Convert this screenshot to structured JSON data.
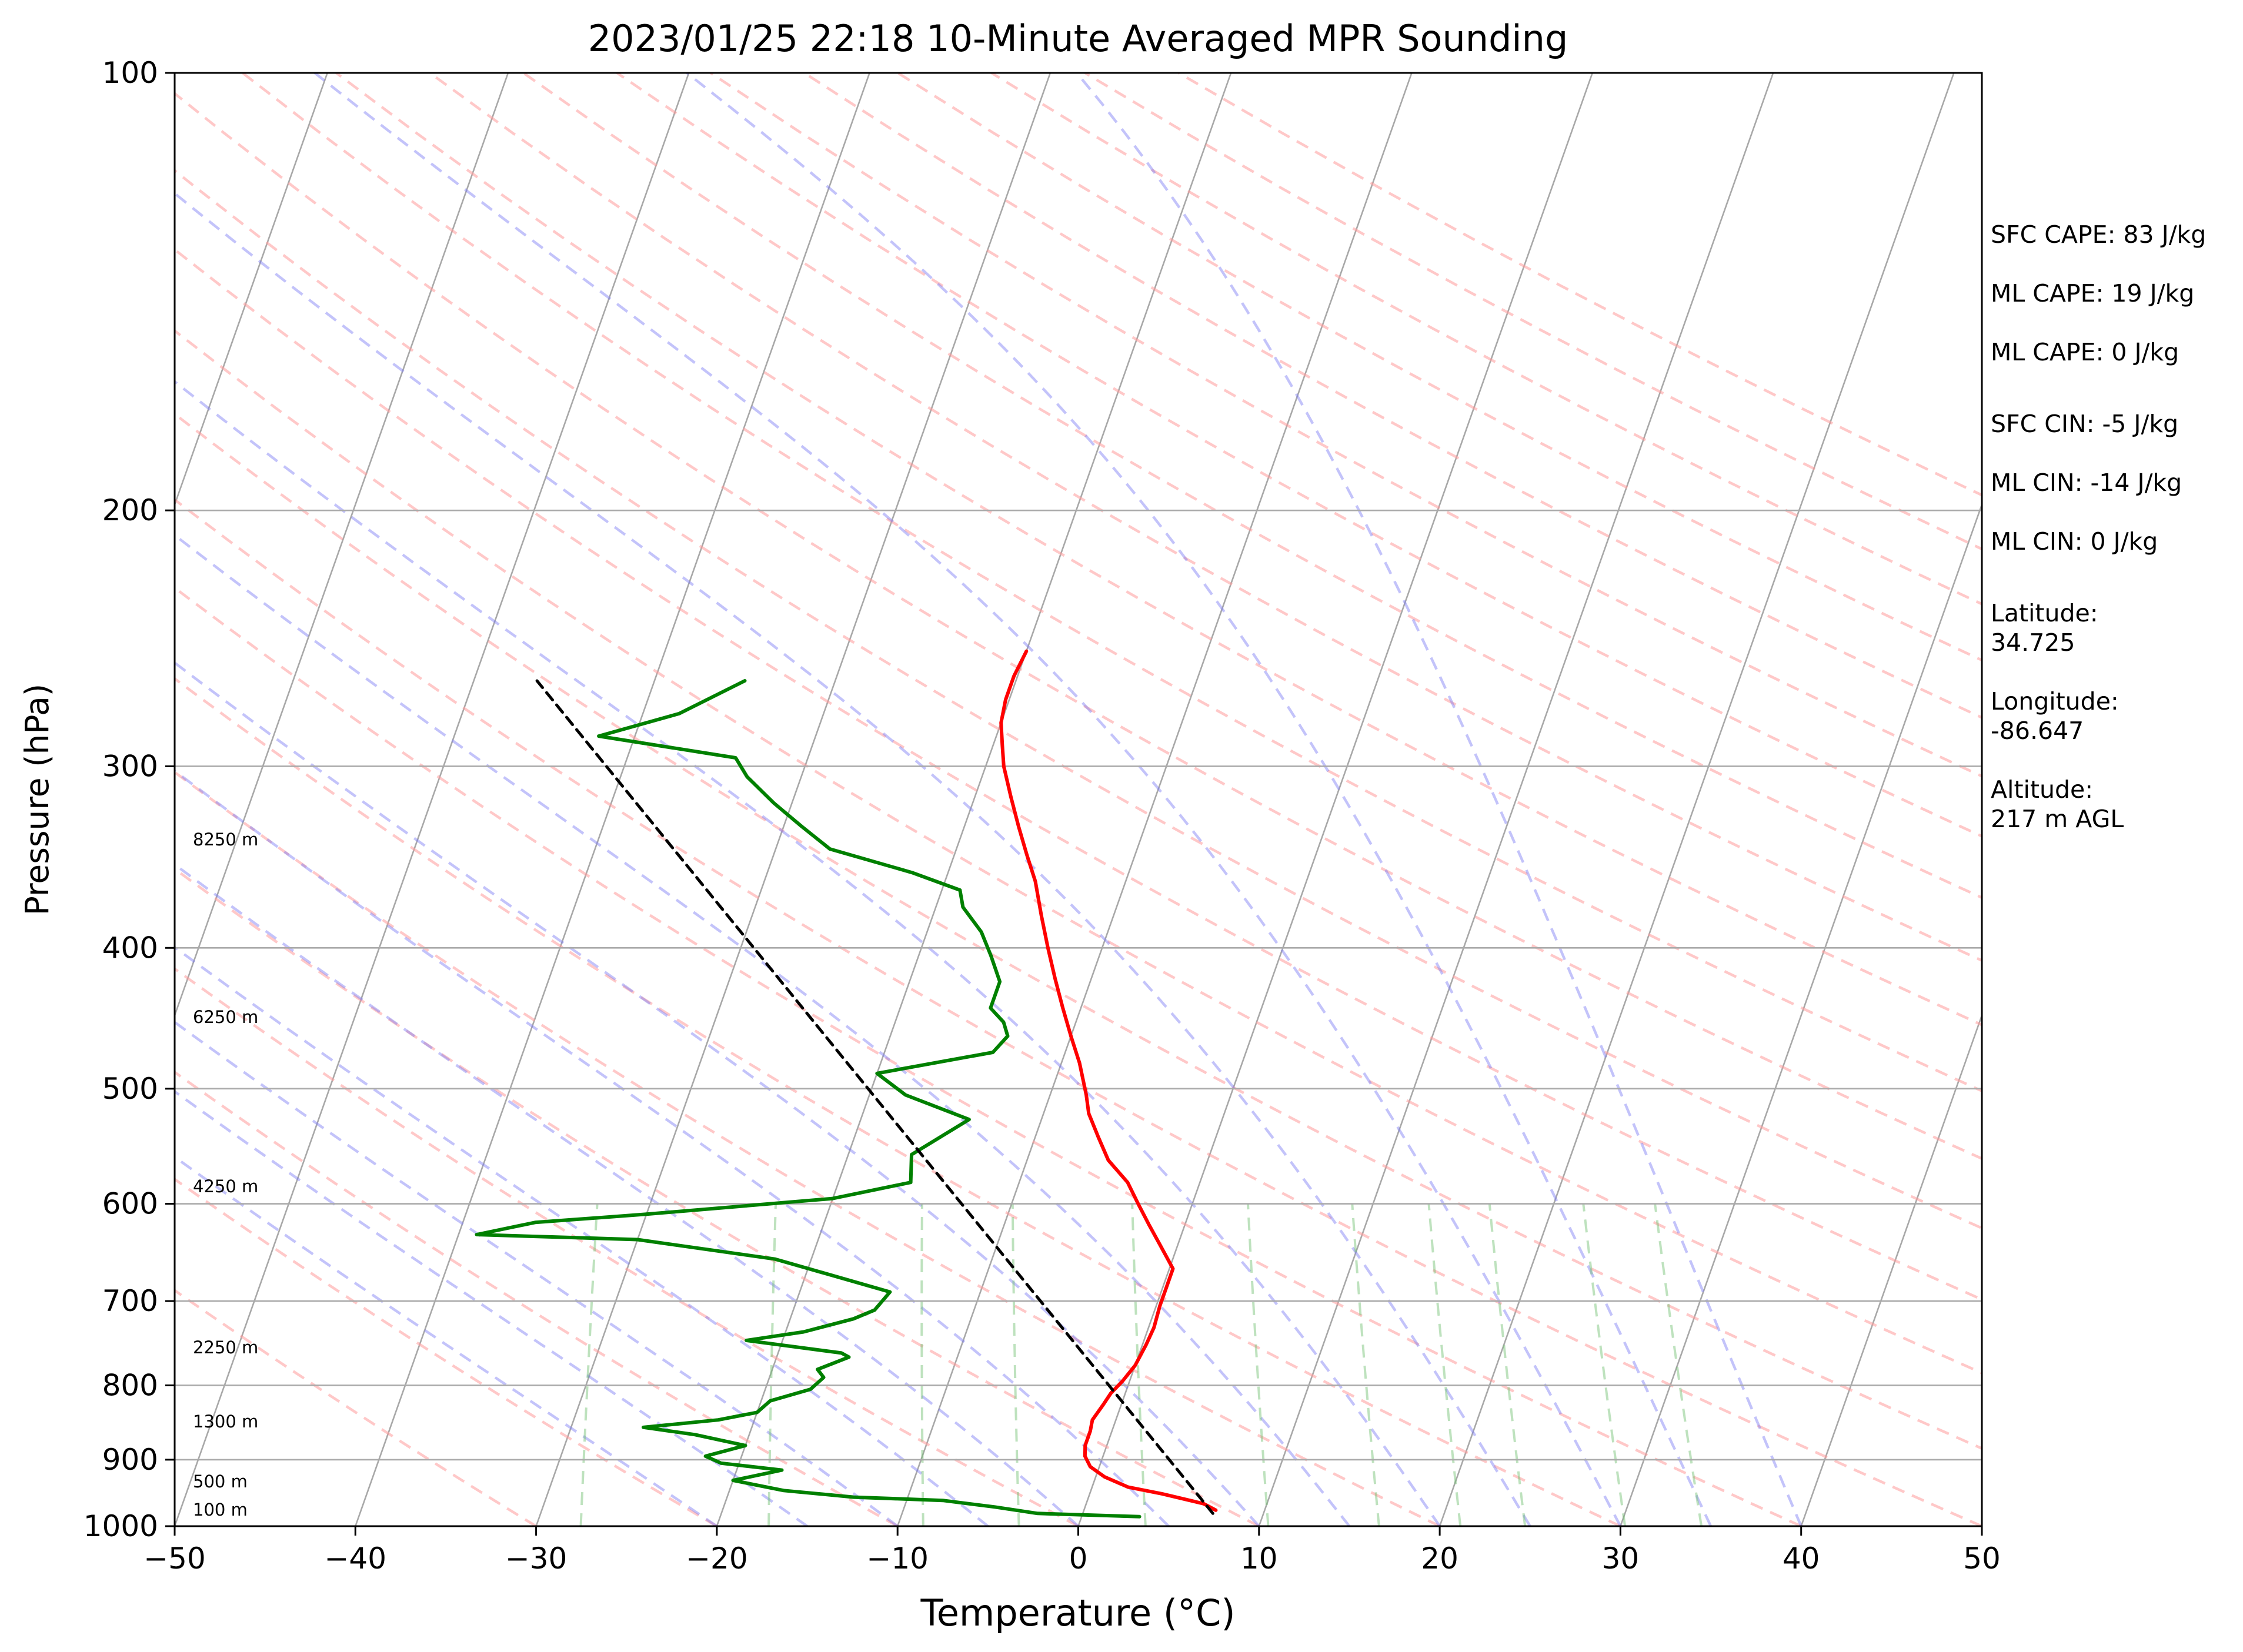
{
  "chart_data": {
    "type": "line",
    "title": "2023/01/25 22:18 10-Minute Averaged MPR Sounding",
    "xlabel": "Temperature (°C)",
    "ylabel": "Pressure (hPa)",
    "xlim": [
      -50,
      50
    ],
    "ylim": [
      1000,
      100
    ],
    "y_scale": "log",
    "x_ticks": [
      "−50",
      "−40",
      "−30",
      "−20",
      "−10",
      "0",
      "10",
      "20",
      "30",
      "40",
      "50"
    ],
    "y_ticks": [
      "100",
      "200",
      "300",
      "400",
      "500",
      "600",
      "700",
      "800",
      "900",
      "1000"
    ],
    "grid": true,
    "height_labels": [
      "100 m",
      "500 m",
      "1300 m",
      "2250 m",
      "4250 m",
      "6250 m",
      "8250 m"
    ],
    "series": [
      {
        "color": "#ff0000",
        "points": [
          [
            7.3,
            975
          ],
          [
            6.5,
            965
          ],
          [
            4,
            950
          ],
          [
            2,
            940
          ],
          [
            0.5,
            925
          ],
          [
            -0.5,
            910
          ],
          [
            -1,
            895
          ],
          [
            -1.2,
            880
          ],
          [
            -1.2,
            860
          ],
          [
            -1.3,
            845
          ],
          [
            -1,
            825
          ],
          [
            -0.8,
            810
          ],
          [
            -0.4,
            795
          ],
          [
            0,
            775
          ],
          [
            0.2,
            750
          ],
          [
            0.3,
            730
          ],
          [
            0.2,
            705
          ],
          [
            0.2,
            680
          ],
          [
            0.2,
            665
          ],
          [
            -1,
            640
          ],
          [
            -2,
            620
          ],
          [
            -3,
            600
          ],
          [
            -4,
            580
          ],
          [
            -5.5,
            560
          ],
          [
            -6.5,
            540
          ],
          [
            -7.5,
            520
          ],
          [
            -8,
            505
          ],
          [
            -9,
            480
          ],
          [
            -10,
            460
          ],
          [
            -11,
            440
          ],
          [
            -12,
            420
          ],
          [
            -13,
            400
          ],
          [
            -14,
            380
          ],
          [
            -15,
            360
          ],
          [
            -16,
            345
          ],
          [
            -17,
            330
          ],
          [
            -18,
            315
          ],
          [
            -19,
            300
          ],
          [
            -19.5,
            290
          ],
          [
            -20,
            280
          ],
          [
            -20.2,
            270
          ],
          [
            -20.2,
            260
          ],
          [
            -20,
            250
          ]
        ]
      },
      {
        "color": "#008000",
        "points": [
          [
            3.2,
            985
          ],
          [
            -2.5,
            980
          ],
          [
            -5,
            970
          ],
          [
            -8,
            960
          ],
          [
            -13,
            955
          ],
          [
            -17,
            945
          ],
          [
            -20,
            930
          ],
          [
            -17.5,
            915
          ],
          [
            -21,
            905
          ],
          [
            -22,
            895
          ],
          [
            -20,
            880
          ],
          [
            -23,
            865
          ],
          [
            -26,
            855
          ],
          [
            -22,
            845
          ],
          [
            -20,
            835
          ],
          [
            -19.5,
            820
          ],
          [
            -17.5,
            805
          ],
          [
            -17,
            790
          ],
          [
            -17.5,
            780
          ],
          [
            -16,
            765
          ],
          [
            -16.5,
            760
          ],
          [
            -22,
            745
          ],
          [
            -19,
            735
          ],
          [
            -16.5,
            720
          ],
          [
            -15.5,
            710
          ],
          [
            -15,
            690
          ],
          [
            -22,
            655
          ],
          [
            -30,
            635
          ],
          [
            -39,
            630
          ],
          [
            -36,
            618
          ],
          [
            -30,
            610
          ],
          [
            -20,
            595
          ],
          [
            -16,
            580
          ],
          [
            -16.5,
            555
          ],
          [
            -14,
            525
          ],
          [
            -18,
            505
          ],
          [
            -20,
            488
          ],
          [
            -14,
            472
          ],
          [
            -13.5,
            460
          ],
          [
            -14,
            450
          ],
          [
            -15,
            440
          ],
          [
            -15,
            422
          ],
          [
            -16,
            405
          ],
          [
            -17,
            390
          ],
          [
            -18.5,
            375
          ],
          [
            -19,
            365
          ],
          [
            -22,
            355
          ],
          [
            -27,
            342
          ],
          [
            -29,
            330
          ],
          [
            -31,
            318
          ],
          [
            -33,
            305
          ],
          [
            -34,
            296
          ],
          [
            -42,
            286
          ],
          [
            -38,
            276
          ],
          [
            -35,
            262
          ]
        ]
      },
      {
        "color": "#000000",
        "style": "dashed",
        "points": [
          [
            7.2,
            980
          ],
          [
            -46.5,
            262
          ]
        ]
      }
    ]
  },
  "annotations": {
    "sfc_cape": "SFC CAPE: 83 J/kg",
    "ml_cape_1": "ML CAPE: 19 J/kg",
    "ml_cape_2": "ML CAPE: 0 J/kg",
    "sfc_cin": "SFC CIN: -5 J/kg",
    "ml_cin_1": "ML CIN: -14 J/kg",
    "ml_cin_2": "ML CIN: 0 J/kg",
    "latitude_label": "Latitude:",
    "latitude_value": "34.725",
    "longitude_label": "Longitude:",
    "longitude_value": "-86.647",
    "altitude_label": "Altitude:",
    "altitude_value": "217 m AGL"
  }
}
